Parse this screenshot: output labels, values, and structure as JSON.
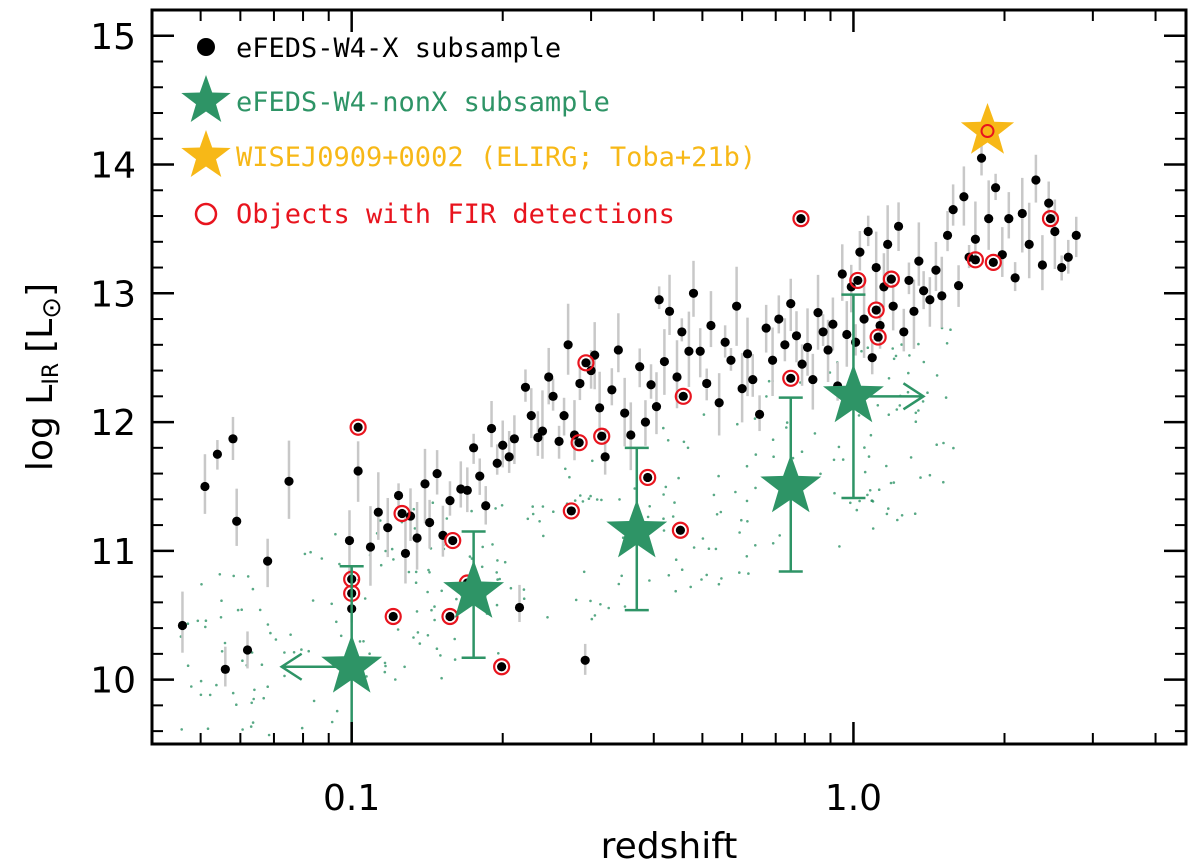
{
  "chart_data": {
    "type": "scatter",
    "x_scale": "log",
    "xlabel": "redshift",
    "ylabel_main": "log L",
    "ylabel_sub": "IR",
    "ylabel_unit": "[L",
    "ylabel_close": "]",
    "sun_symbol": "⊙",
    "xlim": [
      0.04,
      4.6
    ],
    "ylim": [
      9.5,
      15.2
    ],
    "x_ticks": [
      {
        "value": 0.1,
        "label": "0.1"
      },
      {
        "value": 1.0,
        "label": "1.0"
      }
    ],
    "y_ticks": [
      {
        "value": 10,
        "label": "10"
      },
      {
        "value": 11,
        "label": "11"
      },
      {
        "value": 12,
        "label": "12"
      },
      {
        "value": 13,
        "label": "13"
      },
      {
        "value": 14,
        "label": "14"
      },
      {
        "value": 15,
        "label": "15"
      }
    ],
    "colors": {
      "x_subsample": "#000000",
      "nonx": "#2e9466",
      "elirg": "#f7b817",
      "fir": "#e8141e",
      "errorbar": "#c8c8c8"
    },
    "legend": [
      {
        "label": "eFEDS-W4-X subsample",
        "marker": "dot",
        "color": "#000000"
      },
      {
        "label": "eFEDS-W4-nonX subsample",
        "marker": "star",
        "color": "#2e9466"
      },
      {
        "label": "WISEJ0909+0002 (ELIRG; Toba+21b)",
        "marker": "star",
        "color": "#f7b817"
      },
      {
        "label": "Objects with FIR detections",
        "marker": "open-circle",
        "color": "#e8141e"
      }
    ],
    "series": [
      {
        "name": "eFEDS-W4-X subsample (sample)",
        "points": [
          [
            0.046,
            10.42
          ],
          [
            0.051,
            11.5
          ],
          [
            0.054,
            11.75
          ],
          [
            0.056,
            10.08
          ],
          [
            0.058,
            11.87
          ],
          [
            0.059,
            11.23
          ],
          [
            0.062,
            10.23
          ],
          [
            0.068,
            10.92
          ],
          [
            0.075,
            11.54
          ],
          [
            0.099,
            11.08
          ],
          [
            0.1,
            10.55
          ],
          [
            0.103,
            11.62
          ],
          [
            0.109,
            11.03
          ],
          [
            0.113,
            11.3
          ],
          [
            0.118,
            11.18
          ],
          [
            0.124,
            11.43
          ],
          [
            0.128,
            10.98
          ],
          [
            0.131,
            11.27
          ],
          [
            0.135,
            11.1
          ],
          [
            0.14,
            11.52
          ],
          [
            0.143,
            11.22
          ],
          [
            0.148,
            11.6
          ],
          [
            0.152,
            11.12
          ],
          [
            0.157,
            11.39
          ],
          [
            0.165,
            11.48
          ],
          [
            0.17,
            11.47
          ],
          [
            0.175,
            11.8
          ],
          [
            0.18,
            11.58
          ],
          [
            0.185,
            11.35
          ],
          [
            0.19,
            11.95
          ],
          [
            0.195,
            11.68
          ],
          [
            0.2,
            11.82
          ],
          [
            0.206,
            11.73
          ],
          [
            0.211,
            11.87
          ],
          [
            0.216,
            10.56
          ],
          [
            0.222,
            12.27
          ],
          [
            0.228,
            12.05
          ],
          [
            0.235,
            11.88
          ],
          [
            0.24,
            11.93
          ],
          [
            0.247,
            12.35
          ],
          [
            0.252,
            12.2
          ],
          [
            0.259,
            11.85
          ],
          [
            0.265,
            12.05
          ],
          [
            0.27,
            12.6
          ],
          [
            0.278,
            11.9
          ],
          [
            0.285,
            12.3
          ],
          [
            0.292,
            10.15
          ],
          [
            0.3,
            12.4
          ],
          [
            0.305,
            12.52
          ],
          [
            0.312,
            12.11
          ],
          [
            0.32,
            11.73
          ],
          [
            0.33,
            12.25
          ],
          [
            0.34,
            12.56
          ],
          [
            0.35,
            12.07
          ],
          [
            0.36,
            11.9
          ],
          [
            0.375,
            12.43
          ],
          [
            0.385,
            12.0
          ],
          [
            0.395,
            12.29
          ],
          [
            0.405,
            12.12
          ],
          [
            0.41,
            12.95
          ],
          [
            0.42,
            12.47
          ],
          [
            0.43,
            12.86
          ],
          [
            0.445,
            12.35
          ],
          [
            0.455,
            12.7
          ],
          [
            0.47,
            12.55
          ],
          [
            0.48,
            13.0
          ],
          [
            0.495,
            12.55
          ],
          [
            0.51,
            12.3
          ],
          [
            0.52,
            12.75
          ],
          [
            0.54,
            12.15
          ],
          [
            0.555,
            12.62
          ],
          [
            0.57,
            12.48
          ],
          [
            0.585,
            12.9
          ],
          [
            0.6,
            12.26
          ],
          [
            0.615,
            12.53
          ],
          [
            0.63,
            12.33
          ],
          [
            0.65,
            12.06
          ],
          [
            0.67,
            12.73
          ],
          [
            0.69,
            12.48
          ],
          [
            0.71,
            12.8
          ],
          [
            0.73,
            12.6
          ],
          [
            0.75,
            12.92
          ],
          [
            0.77,
            12.67
          ],
          [
            0.79,
            12.45
          ],
          [
            0.81,
            12.58
          ],
          [
            0.83,
            12.33
          ],
          [
            0.85,
            12.85
          ],
          [
            0.87,
            12.7
          ],
          [
            0.89,
            12.56
          ],
          [
            0.91,
            12.76
          ],
          [
            0.93,
            12.28
          ],
          [
            0.95,
            13.15
          ],
          [
            0.97,
            12.68
          ],
          [
            0.99,
            13.05
          ],
          [
            1.01,
            12.62
          ],
          [
            1.03,
            13.32
          ],
          [
            1.05,
            12.8
          ],
          [
            1.07,
            13.48
          ],
          [
            1.09,
            12.5
          ],
          [
            1.11,
            13.2
          ],
          [
            1.13,
            12.75
          ],
          [
            1.15,
            13.05
          ],
          [
            1.17,
            13.38
          ],
          [
            1.2,
            12.9
          ],
          [
            1.23,
            13.52
          ],
          [
            1.26,
            12.7
          ],
          [
            1.29,
            13.1
          ],
          [
            1.32,
            12.86
          ],
          [
            1.35,
            13.25
          ],
          [
            1.38,
            13.02
          ],
          [
            1.42,
            12.95
          ],
          [
            1.46,
            13.18
          ],
          [
            1.5,
            12.98
          ],
          [
            1.54,
            13.45
          ],
          [
            1.58,
            13.65
          ],
          [
            1.62,
            13.06
          ],
          [
            1.66,
            13.75
          ],
          [
            1.7,
            13.28
          ],
          [
            1.75,
            13.42
          ],
          [
            1.8,
            14.05
          ],
          [
            1.86,
            13.58
          ],
          [
            1.92,
            13.82
          ],
          [
            1.98,
            13.3
          ],
          [
            2.04,
            13.58
          ],
          [
            2.1,
            13.12
          ],
          [
            2.17,
            13.62
          ],
          [
            2.24,
            13.38
          ],
          [
            2.31,
            13.88
          ],
          [
            2.38,
            13.22
          ],
          [
            2.45,
            13.7
          ],
          [
            2.52,
            13.48
          ],
          [
            2.6,
            13.2
          ],
          [
            2.68,
            13.28
          ],
          [
            2.78,
            13.45
          ]
        ]
      },
      {
        "name": "Objects with FIR detections",
        "points": [
          [
            0.103,
            11.96
          ],
          [
            0.1,
            10.78
          ],
          [
            0.1,
            10.67
          ],
          [
            0.121,
            10.49
          ],
          [
            0.126,
            11.29
          ],
          [
            0.157,
            10.49
          ],
          [
            0.159,
            11.08
          ],
          [
            0.17,
            10.75
          ],
          [
            0.199,
            10.1
          ],
          [
            0.274,
            11.31
          ],
          [
            0.284,
            11.84
          ],
          [
            0.293,
            12.46
          ],
          [
            0.315,
            11.89
          ],
          [
            0.389,
            11.57
          ],
          [
            0.452,
            11.16
          ],
          [
            0.458,
            12.2
          ],
          [
            0.75,
            12.34
          ],
          [
            0.786,
            13.58
          ],
          [
            1.02,
            13.1
          ],
          [
            1.11,
            12.87
          ],
          [
            1.12,
            12.66
          ],
          [
            1.19,
            13.11
          ],
          [
            1.75,
            13.26
          ],
          [
            1.9,
            13.24
          ],
          [
            2.47,
            13.58
          ],
          [
            1.85,
            14.26
          ]
        ]
      },
      {
        "name": "eFEDS-W4-nonX subsample (binned)",
        "points": [
          {
            "x": 0.1,
            "y": 10.1,
            "ylo": 9.5,
            "yhi": 10.88,
            "xarrow": "left"
          },
          {
            "x": 0.175,
            "y": 10.68,
            "ylo": 10.17,
            "yhi": 11.15
          },
          {
            "x": 0.37,
            "y": 11.15,
            "ylo": 10.54,
            "yhi": 11.8
          },
          {
            "x": 0.75,
            "y": 11.5,
            "ylo": 10.84,
            "yhi": 12.19
          },
          {
            "x": 1.0,
            "y": 12.2,
            "ylo": 11.41,
            "yhi": 12.99,
            "xarrow": "right"
          }
        ]
      },
      {
        "name": "WISEJ0909+0002 (ELIRG; Toba+21b)",
        "points": [
          [
            1.85,
            14.26
          ]
        ]
      }
    ]
  }
}
